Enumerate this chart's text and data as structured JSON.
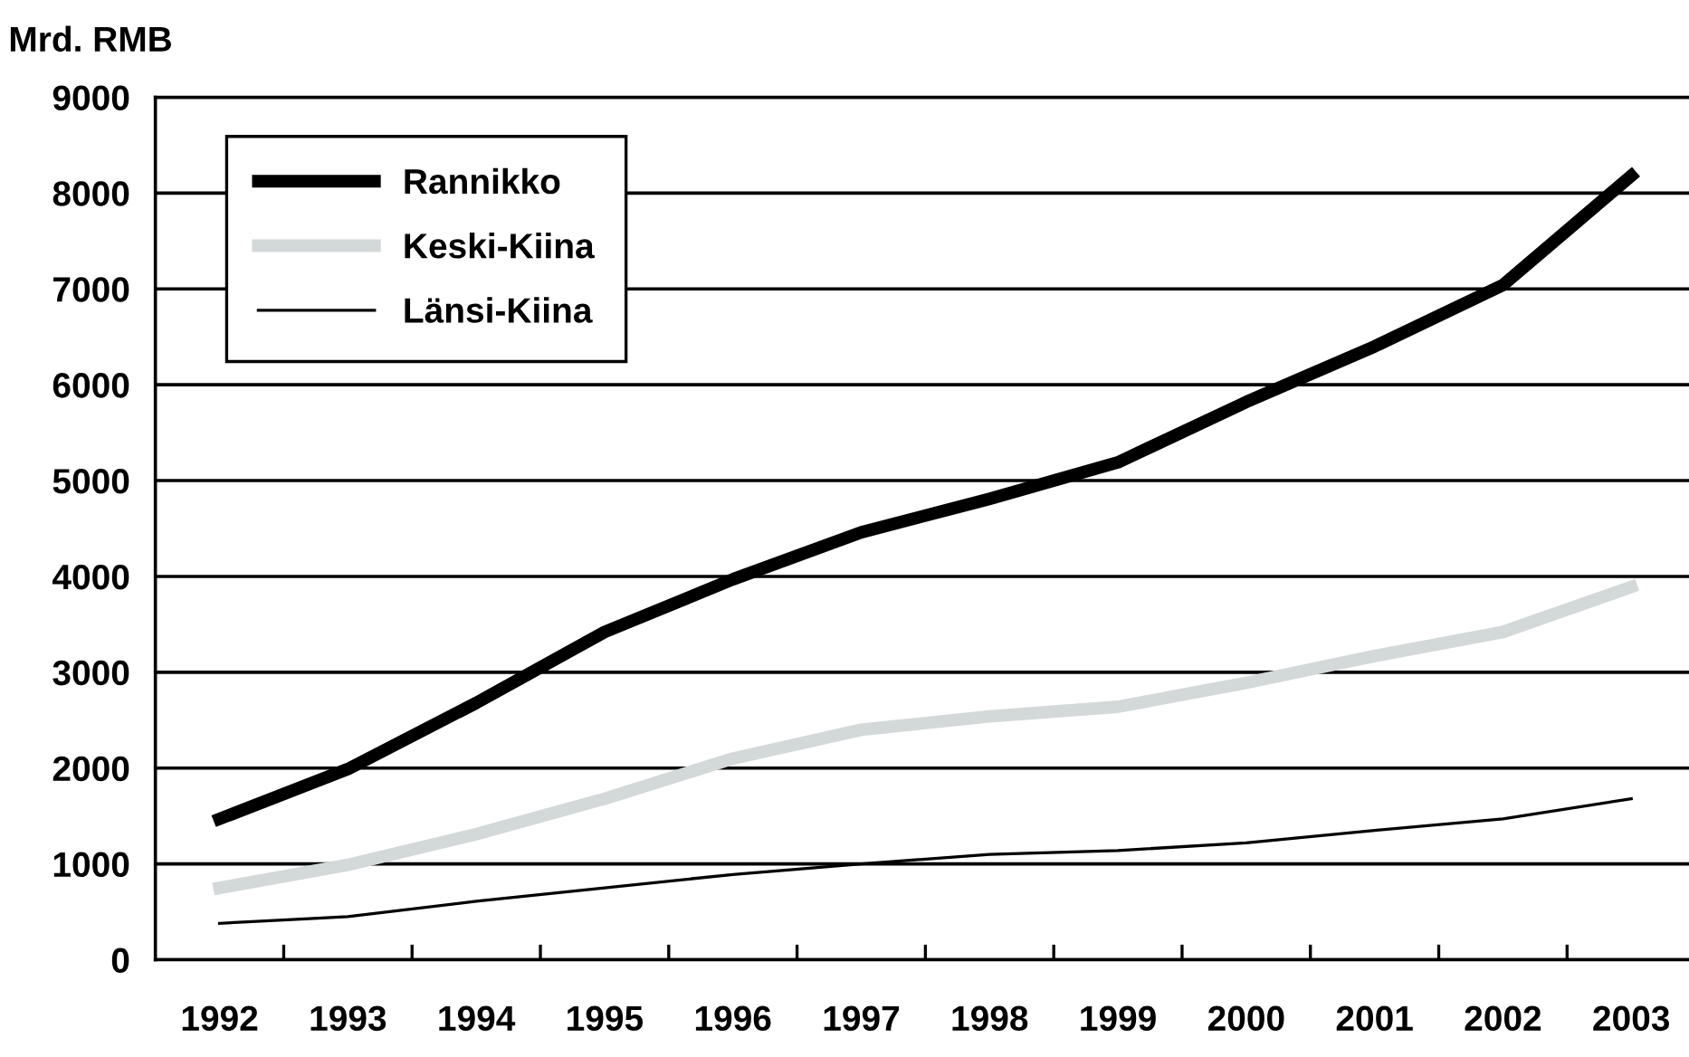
{
  "chart_data": {
    "type": "line",
    "ylabel": "Mrd. RMB",
    "categories": [
      "1992",
      "1993",
      "1994",
      "1995",
      "1996",
      "1997",
      "1998",
      "1999",
      "2000",
      "2001",
      "2002",
      "2003"
    ],
    "series": [
      {
        "name": "Rannikko",
        "color": "#000000",
        "values": [
          1470,
          1990,
          2680,
          3420,
          3970,
          4460,
          4810,
          5190,
          5820,
          6400,
          7040,
          8180
        ]
      },
      {
        "name": "Keski-Kiina",
        "color": "#d3d8d8",
        "values": [
          750,
          990,
          1310,
          1680,
          2100,
          2400,
          2540,
          2640,
          2890,
          3170,
          3420,
          3890
        ]
      },
      {
        "name": "Länsi-Kiina",
        "color": "#000000",
        "values": [
          380,
          450,
          610,
          750,
          890,
          1000,
          1100,
          1140,
          1220,
          1350,
          1470,
          1680
        ]
      }
    ],
    "ylim": [
      0,
      9000
    ],
    "yticks": [
      0,
      1000,
      2000,
      3000,
      4000,
      5000,
      6000,
      7000,
      8000,
      9000
    ],
    "grid": "y",
    "legend": "top left",
    "marker": "none",
    "line_style": "solid"
  }
}
